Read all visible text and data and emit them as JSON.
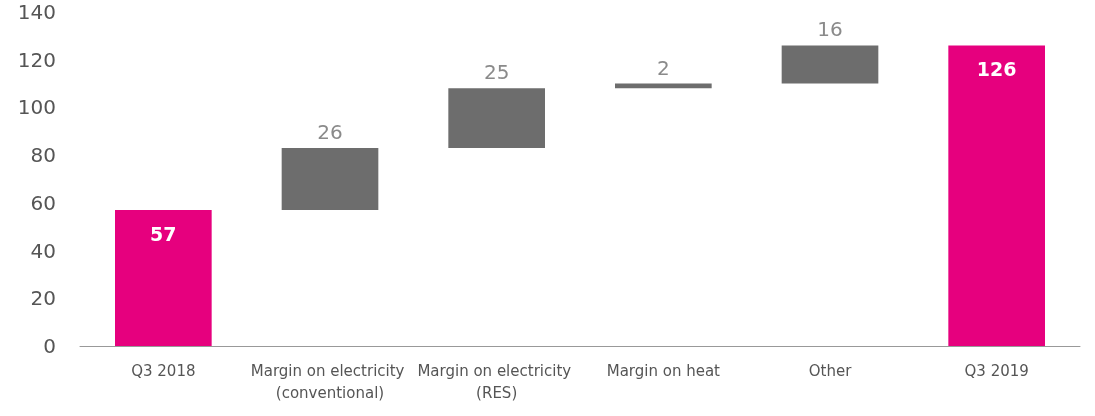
{
  "chart_data": {
    "type": "bar",
    "categories": [
      "Q3 2018",
      "Margin on electricity (conventional)",
      "Margin on electricity (RES)",
      "Margin on heat",
      "Other",
      "Q3 2019"
    ],
    "values": [
      57,
      26,
      25,
      2,
      16,
      126
    ],
    "base": [
      0,
      57,
      83,
      108,
      110,
      0
    ],
    "colors": [
      "#e6007e",
      "#6d6d6d",
      "#6d6d6d",
      "#6d6d6d",
      "#6d6d6d",
      "#e6007e"
    ],
    "ylim": [
      0,
      140
    ],
    "yticks": [
      0,
      20,
      40,
      60,
      80,
      100,
      120,
      140
    ],
    "grid": false,
    "data_labels": true
  }
}
